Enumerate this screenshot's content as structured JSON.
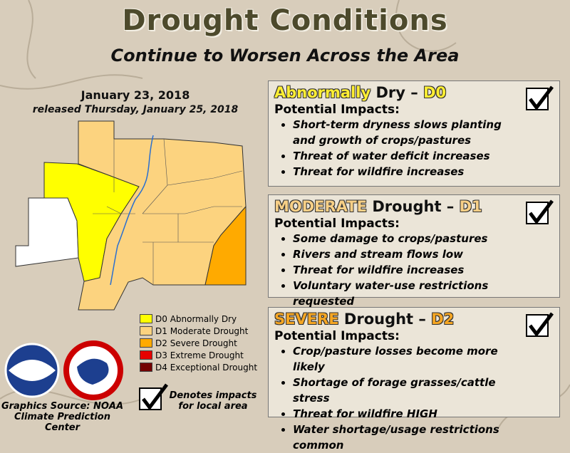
{
  "title": "Drought Conditions",
  "subtitle": "Continue to Worsen Across the Area",
  "map": {
    "date": "January 23, 2018",
    "released": "released Thursday, January 25, 2018"
  },
  "legend": [
    {
      "label": "D0 Abnormally Dry",
      "color": "#ffff00"
    },
    {
      "label": "D1 Moderate Drought",
      "color": "#fcd37f"
    },
    {
      "label": "D2 Severe Drought",
      "color": "#ffaa00"
    },
    {
      "label": "D3 Extreme Drought",
      "color": "#e60000"
    },
    {
      "label": "D4 Exceptional Drought",
      "color": "#730000"
    }
  ],
  "source": [
    "Graphics Source: NOAA",
    "Climate Prediction Center"
  ],
  "note": [
    "Denotes impacts",
    "for local area"
  ],
  "panels": [
    {
      "highlight": "Abnormally",
      "middle": "Dry –",
      "code": "D0",
      "color": "#ffee33",
      "subheading": "Potential Impacts:",
      "impacts": [
        "Short-term dryness slows planting and growth of crops/pastures",
        "Threat of water deficit increases",
        "Threat for wildfire increases"
      ]
    },
    {
      "highlight": "MODERATE",
      "middle": "Drought –",
      "code": "D1",
      "color": "#f7cf86",
      "subheading": "Potential Impacts:",
      "impacts": [
        "Some damage to crops/pastures",
        "Rivers and stream flows low",
        "Threat for wildfire increases",
        "Voluntary water-use restrictions requested"
      ]
    },
    {
      "highlight": "SEVERE",
      "middle": "Drought –",
      "code": "D2",
      "color": "#f5a623",
      "subheading": "Potential Impacts:",
      "impacts": [
        "Crop/pasture losses become more likely",
        "Shortage of forage grasses/cattle stress",
        "Threat for wildfire HIGH",
        "Water shortage/usage restrictions common"
      ]
    }
  ]
}
